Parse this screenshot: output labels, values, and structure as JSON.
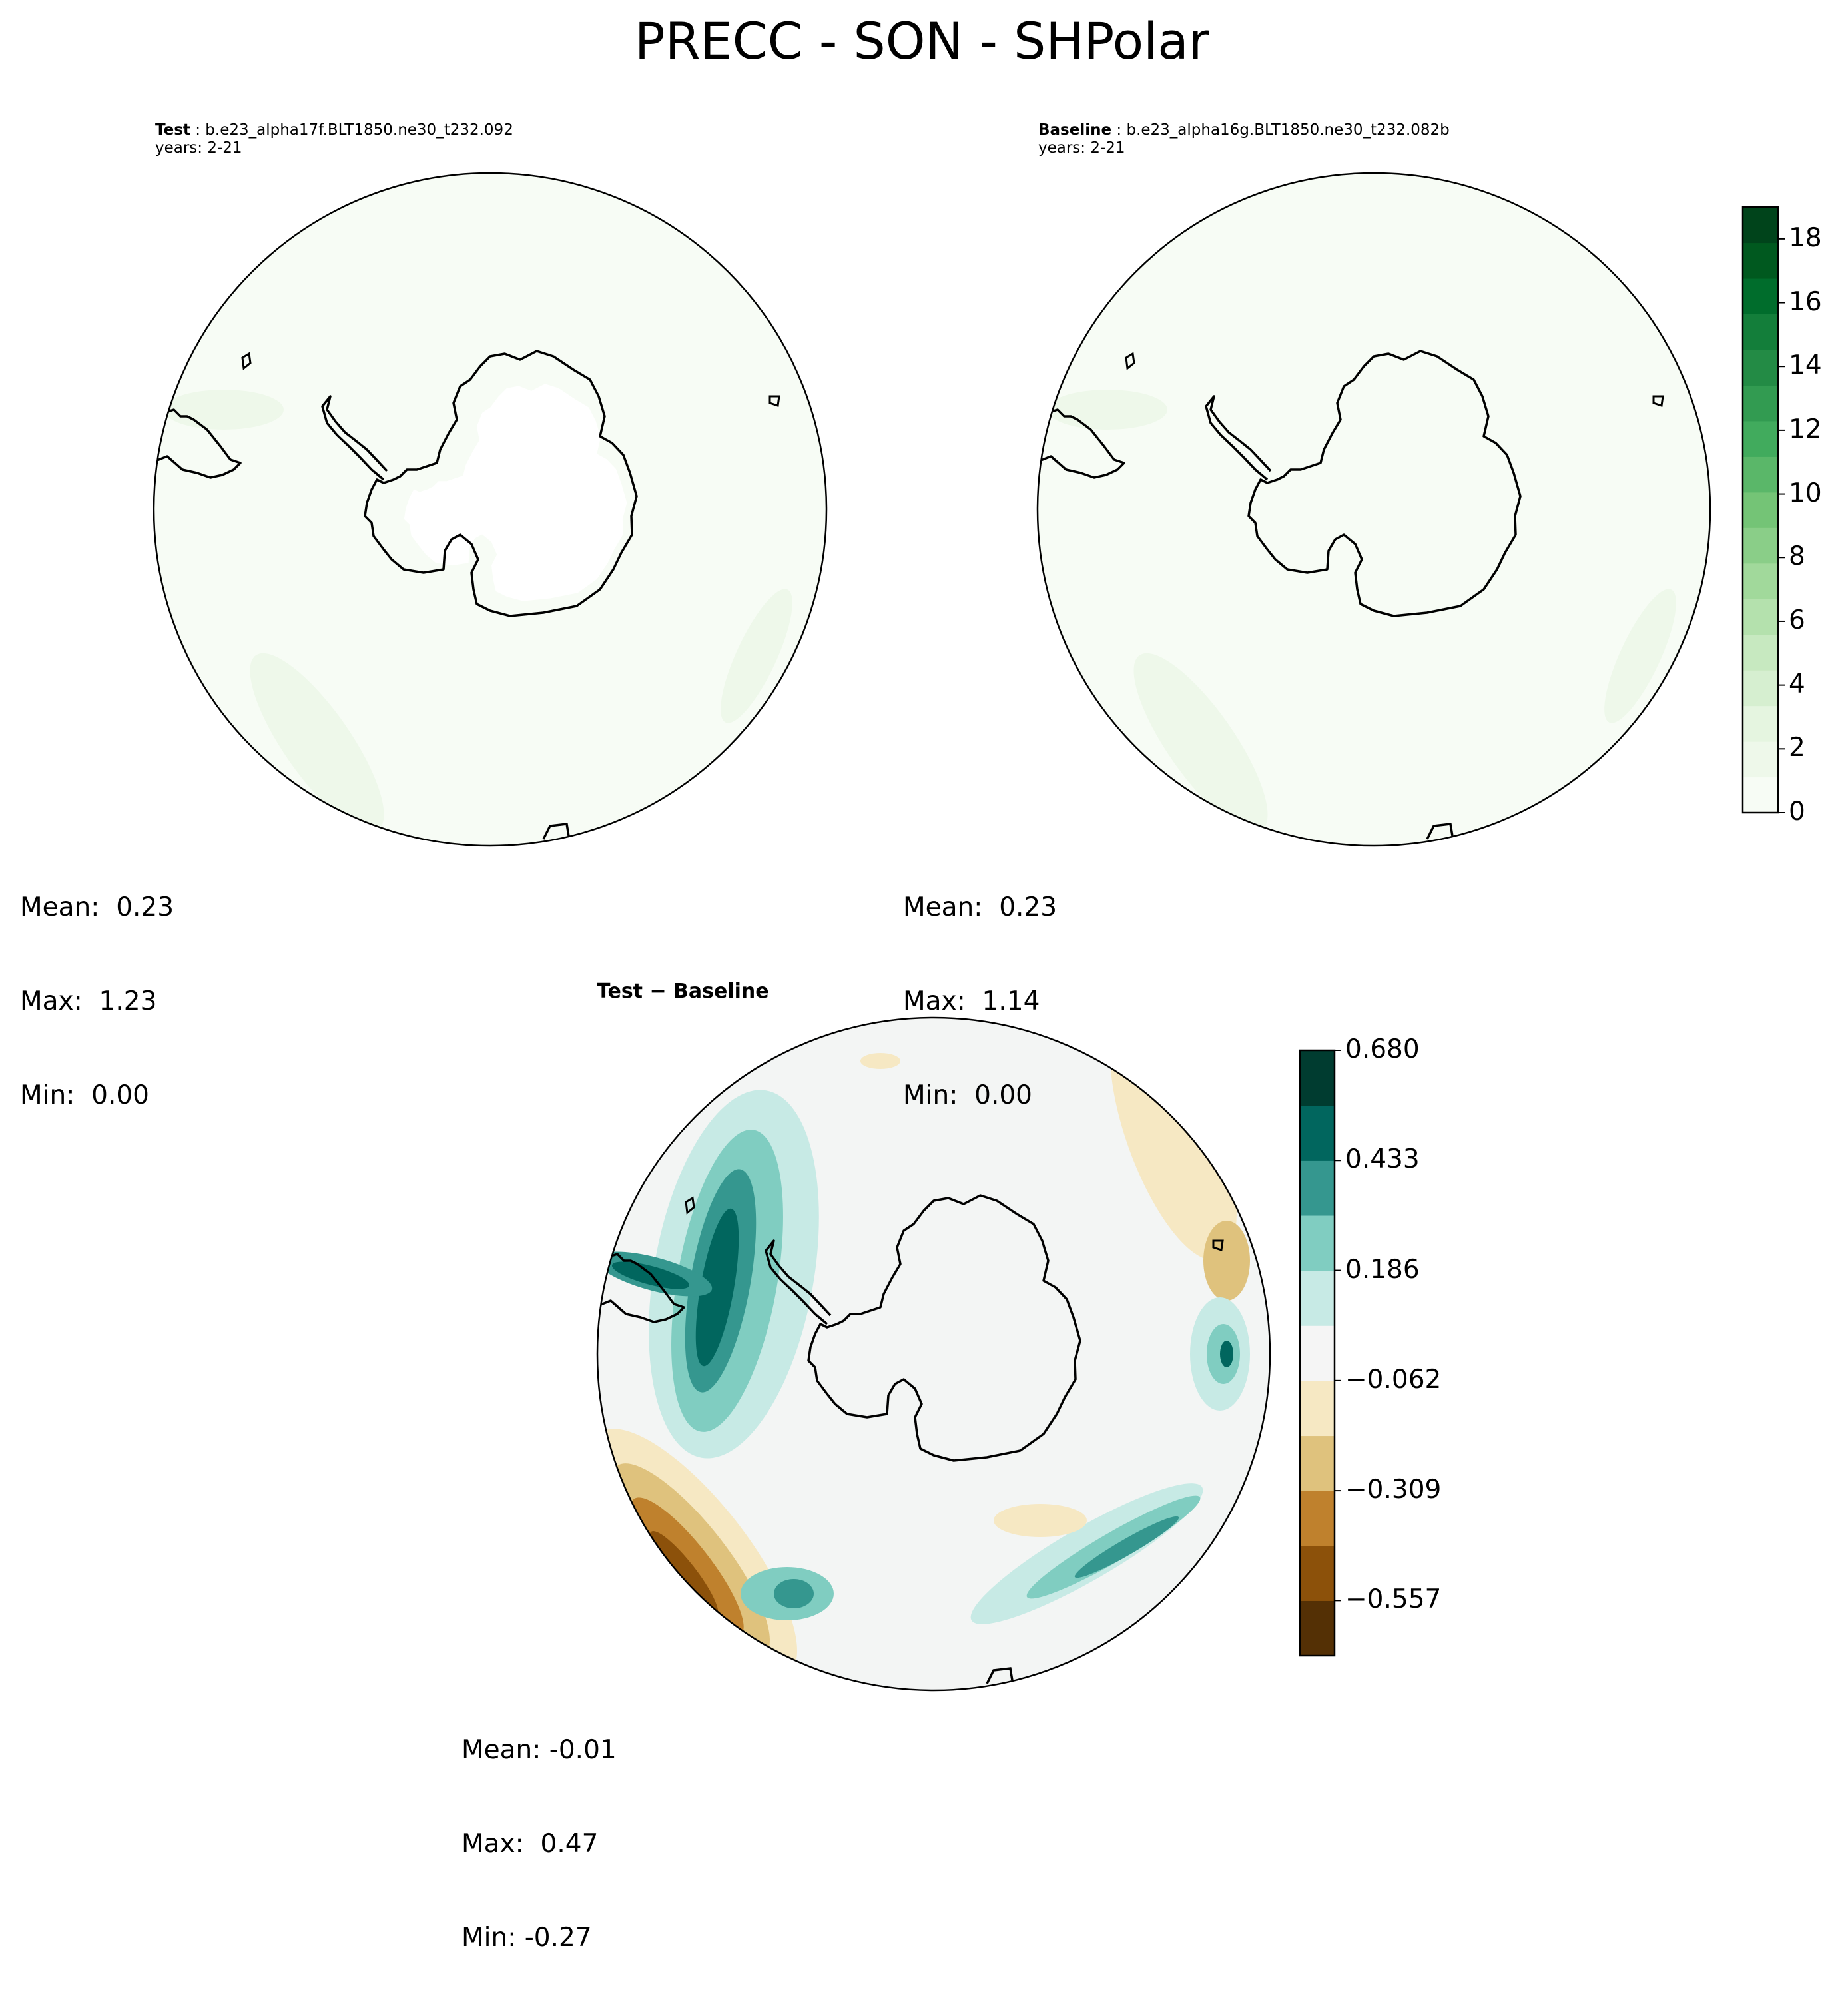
{
  "title": "PRECC - SON - SHPolar",
  "panels": {
    "test": {
      "label": "Test",
      "case": "b.e23_alpha17f.BLT1850.ne30_t232.092",
      "years": "years: 2-21",
      "stats": [
        "Mean:  0.23",
        "Max:  1.23",
        "Min:  0.00"
      ]
    },
    "baseline": {
      "label": "Baseline",
      "case": "b.e23_alpha16g.BLT1850.ne30_t232.082b",
      "years": "years: 2-21",
      "stats": [
        "Mean:  0.23",
        "Max:  1.14",
        "Min:  0.00"
      ]
    },
    "diff": {
      "title": "Test − Baseline",
      "stats": [
        "Mean: -0.01",
        "Max:  0.47",
        "Min: -0.27"
      ]
    }
  },
  "colorbar_main": {
    "colormap": "Greens",
    "ticks": [
      "0",
      "2",
      "4",
      "6",
      "8",
      "10",
      "12",
      "14",
      "16",
      "18"
    ],
    "colors": [
      "#f7fcf5",
      "#eef8ea",
      "#e5f5e0",
      "#d6efd0",
      "#c7e9c0",
      "#b4e1ad",
      "#a1d99b",
      "#8ace88",
      "#74c476",
      "#5ab769",
      "#41ab5d",
      "#329b51",
      "#238b45",
      "#137e3a",
      "#006d2c",
      "#00591f",
      "#00441b"
    ]
  },
  "colorbar_diff": {
    "colormap": "BrBG",
    "ticks": [
      "0.680",
      "0.433",
      "0.186",
      "−0.062",
      "−0.309",
      "−0.557"
    ],
    "colors": [
      "#543005",
      "#8c510a",
      "#bf812d",
      "#dfc27d",
      "#f6e8c3",
      "#f5f5f5",
      "#c7eae5",
      "#80cdc1",
      "#35978f",
      "#01665e",
      "#003c30"
    ]
  },
  "map_colors": {
    "ocean_light": "#f7fcf5",
    "ocean_tint": "#eef8ea",
    "land_empty": "#ffffff",
    "diff_neutral": "#f3f5f4",
    "coast": "#000000"
  }
}
